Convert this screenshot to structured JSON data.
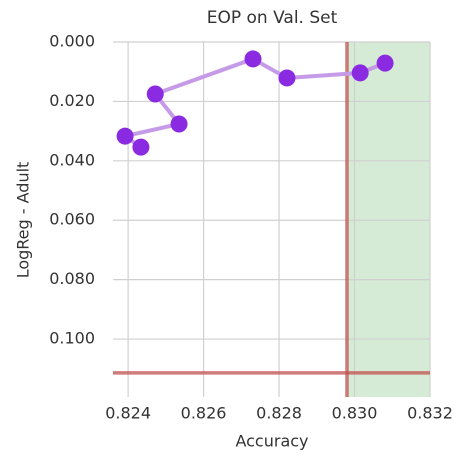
{
  "chart_data": {
    "type": "line",
    "title": "EOP on Val. Set",
    "x_label": "Accuracy",
    "y_label": "LogReg - Adult",
    "series": [
      {
        "name": "EOP",
        "color": "#8a2be2",
        "line_color": "#c59be8",
        "x": [
          0.82434,
          0.82392,
          0.82535,
          0.82472,
          0.82731,
          0.82821,
          0.83015,
          0.83081
        ],
        "values": [
          0.0354,
          0.0317,
          0.0276,
          0.0175,
          0.0057,
          0.0121,
          0.0104,
          0.0071
        ]
      }
    ],
    "vline": 0.8298,
    "hline": 0.1114,
    "ref_color": "#c0504d",
    "region_color": "#d6ebd6",
    "xlim": [
      0.8236,
      0.832
    ],
    "xticks": [
      0.824,
      0.826,
      0.828,
      {
        "value": 0.83,
        "label": "0.830"
      },
      0.832
    ],
    "ylim": [
      0,
      0.1195
    ],
    "y_inverted": true,
    "yticks": [
      {
        "value": 0,
        "label": "0.000"
      },
      {
        "value": 0.02,
        "label": "0.020"
      },
      {
        "value": 0.04,
        "label": "0.040"
      },
      {
        "value": 0.06,
        "label": "0.060"
      },
      {
        "value": 0.08,
        "label": "0.080"
      },
      {
        "value": 0.1,
        "label": "0.100"
      }
    ],
    "grid": true
  }
}
